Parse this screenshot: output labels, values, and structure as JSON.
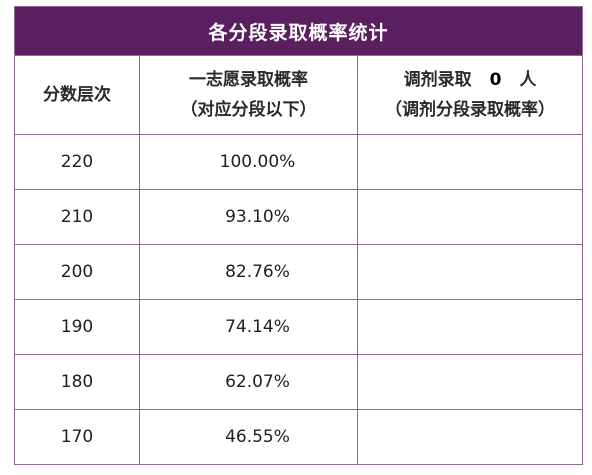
{
  "table": {
    "title": "各分段录取概率统计",
    "headers": {
      "score": "分数层次",
      "first_choice_line1": "一志愿录取概率",
      "first_choice_line2": "（对应分段以下）",
      "adjust_prefix": "调剂录取",
      "adjust_count": "0",
      "adjust_suffix": "人",
      "adjust_line2": "（调剂分段录取概率）"
    },
    "rows": [
      {
        "score": "220",
        "rate": "100.00%",
        "adjust": ""
      },
      {
        "score": "210",
        "rate": "93.10%",
        "adjust": ""
      },
      {
        "score": "200",
        "rate": "82.76%",
        "adjust": ""
      },
      {
        "score": "190",
        "rate": "74.14%",
        "adjust": ""
      },
      {
        "score": "180",
        "rate": "62.07%",
        "adjust": ""
      },
      {
        "score": "170",
        "rate": "46.55%",
        "adjust": ""
      }
    ]
  },
  "colors": {
    "title_background": "#5a1f5e",
    "border": "#8e6b8f"
  }
}
